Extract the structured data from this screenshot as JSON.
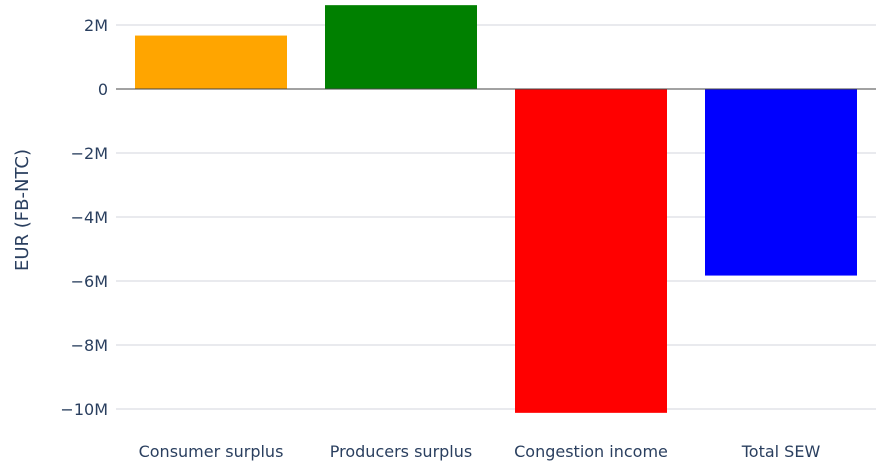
{
  "chart_data": {
    "type": "bar",
    "title": "",
    "xlabel": "",
    "ylabel": "EUR (FB-NTC)",
    "categories": [
      "Consumer surplus",
      "Producers surplus",
      "Congestion income",
      "Total SEW"
    ],
    "values": [
      1670000,
      2620000,
      -10120000,
      -5830000
    ],
    "colors": [
      "#FFA500",
      "#008000",
      "#FF0000",
      "#0000FF"
    ],
    "ylim": [
      -10650000,
      2650000
    ],
    "yticks": [
      2000000,
      0,
      -2000000,
      -4000000,
      -6000000,
      -8000000,
      -10000000
    ],
    "ytick_labels": [
      "2M",
      "0",
      "−2M",
      "−4M",
      "−6M",
      "−8M",
      "−10M"
    ],
    "grid": true,
    "legend": "none",
    "grid_color": "#d3d6dc",
    "zero_line_color": "#444444",
    "text_color": "#2a3f5f"
  }
}
